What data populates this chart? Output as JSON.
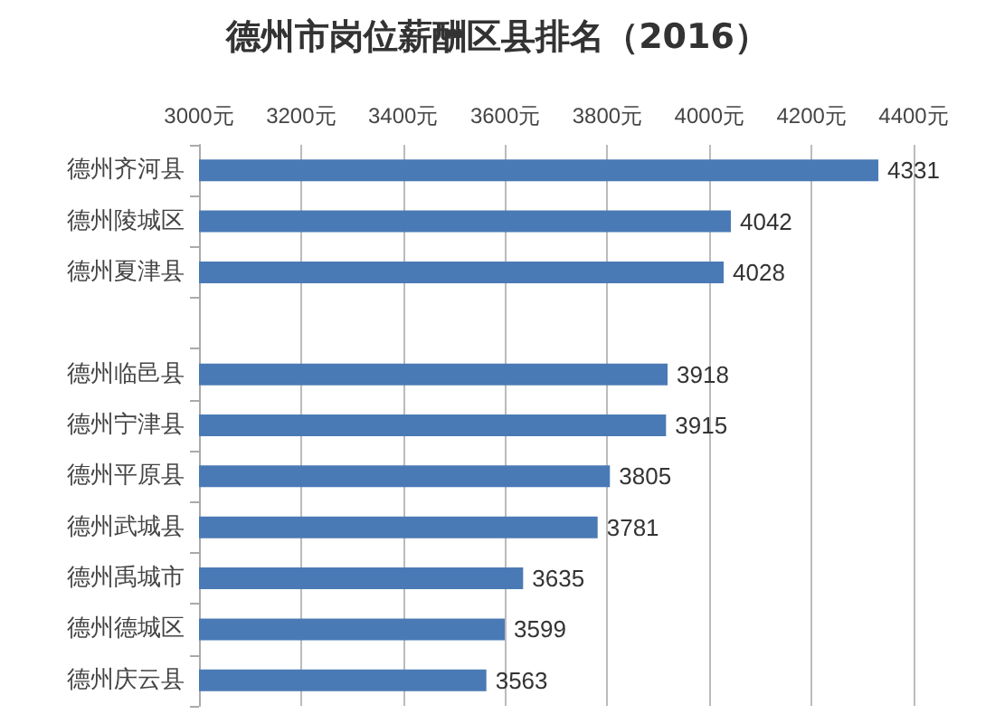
{
  "chart_data": {
    "type": "bar",
    "orientation": "horizontal",
    "title": "德州市岗位薪酬区县排名（2016）",
    "categories": [
      "德州齐河县",
      "德州陵城区",
      "德州夏津县",
      null,
      "德州临邑县",
      "德州宁津县",
      "德州平原县",
      "德州武城县",
      "德州禹城市",
      "德州德城区",
      "德州庆云县"
    ],
    "values": [
      4331,
      4042,
      4028,
      null,
      3918,
      3915,
      3805,
      3781,
      3635,
      3599,
      3563
    ],
    "color": "#4a7ab5",
    "data_labels": true,
    "grid": "x",
    "xlim": [
      3000,
      4400
    ],
    "xticks": [
      {
        "value": 3000,
        "label": "3000元"
      },
      {
        "value": 3200,
        "label": "3200元"
      },
      {
        "value": 3400,
        "label": "3400元"
      },
      {
        "value": 3600,
        "label": "3600元"
      },
      {
        "value": 3800,
        "label": "3800元"
      },
      {
        "value": 4000,
        "label": "4000元"
      },
      {
        "value": 4200,
        "label": "4200元"
      },
      {
        "value": 4400,
        "label": "4400元"
      }
    ]
  }
}
